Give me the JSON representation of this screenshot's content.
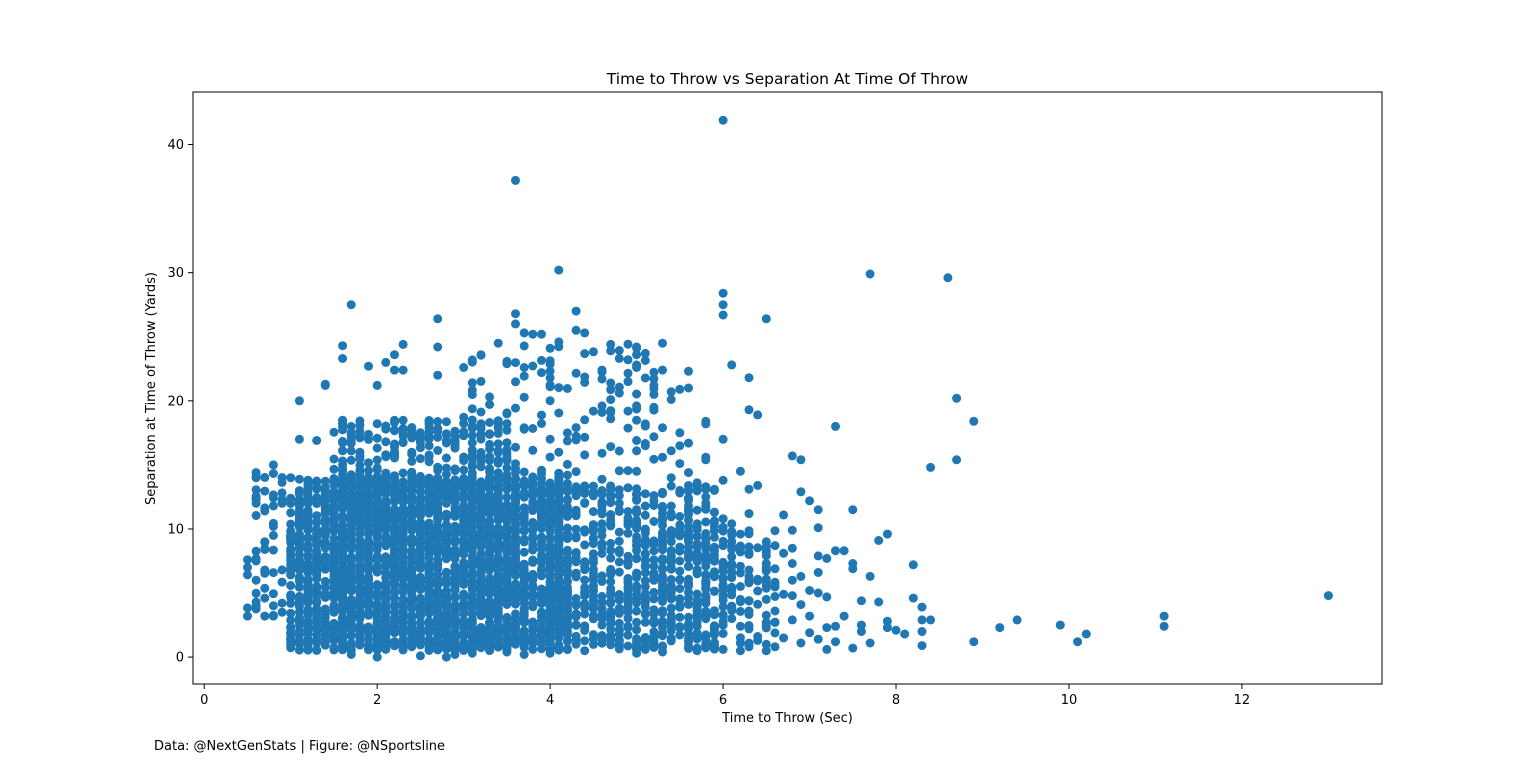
{
  "caption": "Data: @NextGenStats | Figure: @NSportsline",
  "colors": {
    "marker": "#1f77b4",
    "axes": "#000000",
    "background": "#ffffff"
  },
  "chart_data": {
    "type": "scatter",
    "title": "Time to Throw vs Separation At Time Of Throw",
    "xlabel": "Time to Throw (Sec)",
    "ylabel": "Separation at Time of Throw (Yards)",
    "xlim": [
      -0.13,
      13.62
    ],
    "ylim": [
      -2.1,
      44.1
    ],
    "x_ticks": [
      0,
      2,
      4,
      6,
      8,
      10,
      12
    ],
    "y_ticks": [
      0,
      10,
      20,
      30,
      40
    ],
    "grid": false,
    "legend": "none",
    "dense_regions": [
      {
        "x_range": [
          1.0,
          4.2
        ],
        "y_range": [
          0.5,
          14.0
        ],
        "n": 2200
      },
      {
        "x_range": [
          1.5,
          3.6
        ],
        "y_range": [
          0.5,
          18.5
        ],
        "n": 800
      },
      {
        "x_range": [
          4.0,
          6.0
        ],
        "y_range": [
          0.5,
          13.5
        ],
        "n": 600
      },
      {
        "x_range": [
          5.0,
          6.6
        ],
        "y_range": [
          0.5,
          10.0
        ],
        "n": 200
      },
      {
        "x_range": [
          0.5,
          1.0
        ],
        "y_range": [
          3.0,
          14.5
        ],
        "n": 40
      },
      {
        "x_range": [
          3.0,
          5.2
        ],
        "y_range": [
          12.0,
          24.5
        ],
        "n": 140
      }
    ],
    "points": [
      [
        6.0,
        41.9
      ],
      [
        3.6,
        37.2
      ],
      [
        4.1,
        30.2
      ],
      [
        7.7,
        29.9
      ],
      [
        8.6,
        29.6
      ],
      [
        6.0,
        28.4
      ],
      [
        6.0,
        27.5
      ],
      [
        1.7,
        27.5
      ],
      [
        4.3,
        27.0
      ],
      [
        3.6,
        26.8
      ],
      [
        6.0,
        26.7
      ],
      [
        6.5,
        26.4
      ],
      [
        2.7,
        26.4
      ],
      [
        3.6,
        26.0
      ],
      [
        4.3,
        25.5
      ],
      [
        4.4,
        25.3
      ],
      [
        3.7,
        25.3
      ],
      [
        3.8,
        25.2
      ],
      [
        3.9,
        25.2
      ],
      [
        4.1,
        24.6
      ],
      [
        5.3,
        24.5
      ],
      [
        2.3,
        24.4
      ],
      [
        4.7,
        24.4
      ],
      [
        5.0,
        24.2
      ],
      [
        4.0,
        24.1
      ],
      [
        1.6,
        24.3
      ],
      [
        2.7,
        24.2
      ],
      [
        5.1,
        23.7
      ],
      [
        5.0,
        23.6
      ],
      [
        2.2,
        23.6
      ],
      [
        3.2,
        23.6
      ],
      [
        1.6,
        23.3
      ],
      [
        4.9,
        23.2
      ],
      [
        3.5,
        22.9
      ],
      [
        6.1,
        22.8
      ],
      [
        1.9,
        22.7
      ],
      [
        2.1,
        23.0
      ],
      [
        2.2,
        22.4
      ],
      [
        2.3,
        22.4
      ],
      [
        3.0,
        22.6
      ],
      [
        5.3,
        22.4
      ],
      [
        4.6,
        22.4
      ],
      [
        3.7,
        22.6
      ],
      [
        5.6,
        22.3
      ],
      [
        2.7,
        22.0
      ],
      [
        6.3,
        21.8
      ],
      [
        4.0,
        21.8
      ],
      [
        4.6,
        21.7
      ],
      [
        4.9,
        21.5
      ],
      [
        5.2,
        21.2
      ],
      [
        1.4,
        21.3
      ],
      [
        1.4,
        21.2
      ],
      [
        2.0,
        21.2
      ],
      [
        4.0,
        21.1
      ],
      [
        5.6,
        21.0
      ],
      [
        5.5,
        20.9
      ],
      [
        5.4,
        20.7
      ],
      [
        4.8,
        20.6
      ],
      [
        8.7,
        20.2
      ],
      [
        1.1,
        20.0
      ],
      [
        6.3,
        19.3
      ],
      [
        6.4,
        18.9
      ],
      [
        8.9,
        18.4
      ],
      [
        5.8,
        18.4
      ],
      [
        5.8,
        18.2
      ],
      [
        7.3,
        18.0
      ],
      [
        6.0,
        17.0
      ],
      [
        1.1,
        17.0
      ],
      [
        1.3,
        16.9
      ],
      [
        5.5,
        16.5
      ],
      [
        6.8,
        15.7
      ],
      [
        5.8,
        15.6
      ],
      [
        6.9,
        15.4
      ],
      [
        8.7,
        15.4
      ],
      [
        5.8,
        15.4
      ],
      [
        0.6,
        14.4
      ],
      [
        0.6,
        14.0
      ],
      [
        0.8,
        15.0
      ],
      [
        1.0,
        14.0
      ],
      [
        8.4,
        14.8
      ],
      [
        6.2,
        14.5
      ],
      [
        6.0,
        13.8
      ],
      [
        6.4,
        13.4
      ],
      [
        6.3,
        13.1
      ],
      [
        6.9,
        12.9
      ],
      [
        5.8,
        12.5
      ],
      [
        7.0,
        12.2
      ],
      [
        0.6,
        12.0
      ],
      [
        0.8,
        11.8
      ],
      [
        0.9,
        12.0
      ],
      [
        0.7,
        11.4
      ],
      [
        1.0,
        12.4
      ],
      [
        7.5,
        11.5
      ],
      [
        7.1,
        11.5
      ],
      [
        6.7,
        11.1
      ],
      [
        6.3,
        11.2
      ],
      [
        5.9,
        10.5
      ],
      [
        6.0,
        10.8
      ],
      [
        7.1,
        10.1
      ],
      [
        6.8,
        9.9
      ],
      [
        6.1,
        9.8
      ],
      [
        7.9,
        9.6
      ],
      [
        7.8,
        9.1
      ],
      [
        6.5,
        9.0
      ],
      [
        6.6,
        8.7
      ],
      [
        6.3,
        8.6
      ],
      [
        7.4,
        8.3
      ],
      [
        7.3,
        8.3
      ],
      [
        6.8,
        8.5
      ],
      [
        6.7,
        8.1
      ],
      [
        7.2,
        7.7
      ],
      [
        7.1,
        7.9
      ],
      [
        6.5,
        7.3
      ],
      [
        7.5,
        7.3
      ],
      [
        7.5,
        6.9
      ],
      [
        8.2,
        7.2
      ],
      [
        6.8,
        7.3
      ],
      [
        6.6,
        6.9
      ],
      [
        7.7,
        6.3
      ],
      [
        6.9,
        6.3
      ],
      [
        7.1,
        6.6
      ],
      [
        6.4,
        6.0
      ],
      [
        6.8,
        6.0
      ],
      [
        6.5,
        5.6
      ],
      [
        7.0,
        5.2
      ],
      [
        6.6,
        5.6
      ],
      [
        7.1,
        5.0
      ],
      [
        6.8,
        4.8
      ],
      [
        7.6,
        4.4
      ],
      [
        7.8,
        4.3
      ],
      [
        7.2,
        4.7
      ],
      [
        6.7,
        4.9
      ],
      [
        6.9,
        4.1
      ],
      [
        8.2,
        4.6
      ],
      [
        8.3,
        3.9
      ],
      [
        7.4,
        3.2
      ],
      [
        6.6,
        3.6
      ],
      [
        7.0,
        3.2
      ],
      [
        8.4,
        2.9
      ],
      [
        8.3,
        2.9
      ],
      [
        7.9,
        2.8
      ],
      [
        7.6,
        2.5
      ],
      [
        7.9,
        2.3
      ],
      [
        8.0,
        2.1
      ],
      [
        7.3,
        2.4
      ],
      [
        6.6,
        2.7
      ],
      [
        6.8,
        2.9
      ],
      [
        7.2,
        2.3
      ],
      [
        7.6,
        2.0
      ],
      [
        8.1,
        1.8
      ],
      [
        7.0,
        1.9
      ],
      [
        7.1,
        1.4
      ],
      [
        6.7,
        1.5
      ],
      [
        7.3,
        1.2
      ],
      [
        7.7,
        1.1
      ],
      [
        7.5,
        0.7
      ],
      [
        7.2,
        0.6
      ],
      [
        6.9,
        1.1
      ],
      [
        8.3,
        2.0
      ],
      [
        8.3,
        0.9
      ],
      [
        6.5,
        0.5
      ],
      [
        6.5,
        1.0
      ],
      [
        6.6,
        0.8
      ],
      [
        6.3,
        0.8
      ],
      [
        6.4,
        1.3
      ],
      [
        8.9,
        1.2
      ],
      [
        9.2,
        2.3
      ],
      [
        9.4,
        2.9
      ],
      [
        9.9,
        2.5
      ],
      [
        10.1,
        1.2
      ],
      [
        10.2,
        1.8
      ],
      [
        11.1,
        3.2
      ],
      [
        11.1,
        2.4
      ],
      [
        13.0,
        4.8
      ],
      [
        0.5,
        7.6
      ],
      [
        0.5,
        3.2
      ],
      [
        0.6,
        4.0
      ],
      [
        0.6,
        6.0
      ],
      [
        0.7,
        3.2
      ],
      [
        0.7,
        4.6
      ],
      [
        0.8,
        3.2
      ],
      [
        0.8,
        4.0
      ],
      [
        0.9,
        3.5
      ],
      [
        0.6,
        7.5
      ],
      [
        0.7,
        8.4
      ],
      [
        0.7,
        9.0
      ],
      [
        0.8,
        9.5
      ],
      [
        0.8,
        10.2
      ],
      [
        0.7,
        6.8
      ],
      [
        1.0,
        1.0
      ],
      [
        1.0,
        1.5
      ],
      [
        1.1,
        1.2
      ],
      [
        1.0,
        2.3
      ],
      [
        1.2,
        1.8
      ],
      [
        2.0,
        0.0
      ],
      [
        2.8,
        0.0
      ],
      [
        2.9,
        0.2
      ],
      [
        3.1,
        0.3
      ],
      [
        2.5,
        0.1
      ],
      [
        1.7,
        0.2
      ],
      [
        4.0,
        0.3
      ],
      [
        3.7,
        0.2
      ],
      [
        3.5,
        0.4
      ],
      [
        4.4,
        0.5
      ],
      [
        5.0,
        0.3
      ],
      [
        5.3,
        0.4
      ],
      [
        5.7,
        0.5
      ],
      [
        6.0,
        0.6
      ],
      [
        6.2,
        0.5
      ],
      [
        5.4,
        20.1
      ],
      [
        5.2,
        20.5
      ],
      [
        5.0,
        19.6
      ],
      [
        4.9,
        19.2
      ],
      [
        4.6,
        19.6
      ],
      [
        4.5,
        19.2
      ],
      [
        4.7,
        18.6
      ],
      [
        5.1,
        18.2
      ],
      [
        5.3,
        17.9
      ],
      [
        5.5,
        17.5
      ],
      [
        5.2,
        17.2
      ],
      [
        5.0,
        16.9
      ],
      [
        5.1,
        16.5
      ],
      [
        5.4,
        16.1
      ],
      [
        5.6,
        16.7
      ],
      [
        5.3,
        15.6
      ],
      [
        5.5,
        15.1
      ],
      [
        5.6,
        14.4
      ],
      [
        5.4,
        14.0
      ],
      [
        5.7,
        13.6
      ],
      [
        5.9,
        13.0
      ],
      [
        5.8,
        12.0
      ],
      [
        5.9,
        11.3
      ],
      [
        6.1,
        10.4
      ],
      [
        6.2,
        9.6
      ],
      [
        6.1,
        9.0
      ],
      [
        6.2,
        8.2
      ],
      [
        6.0,
        7.4
      ],
      [
        6.1,
        6.6
      ],
      [
        6.3,
        5.8
      ],
      [
        6.0,
        5.2
      ],
      [
        6.2,
        4.5
      ],
      [
        6.3,
        3.6
      ],
      [
        6.1,
        3.0
      ],
      [
        6.3,
        2.2
      ]
    ]
  }
}
